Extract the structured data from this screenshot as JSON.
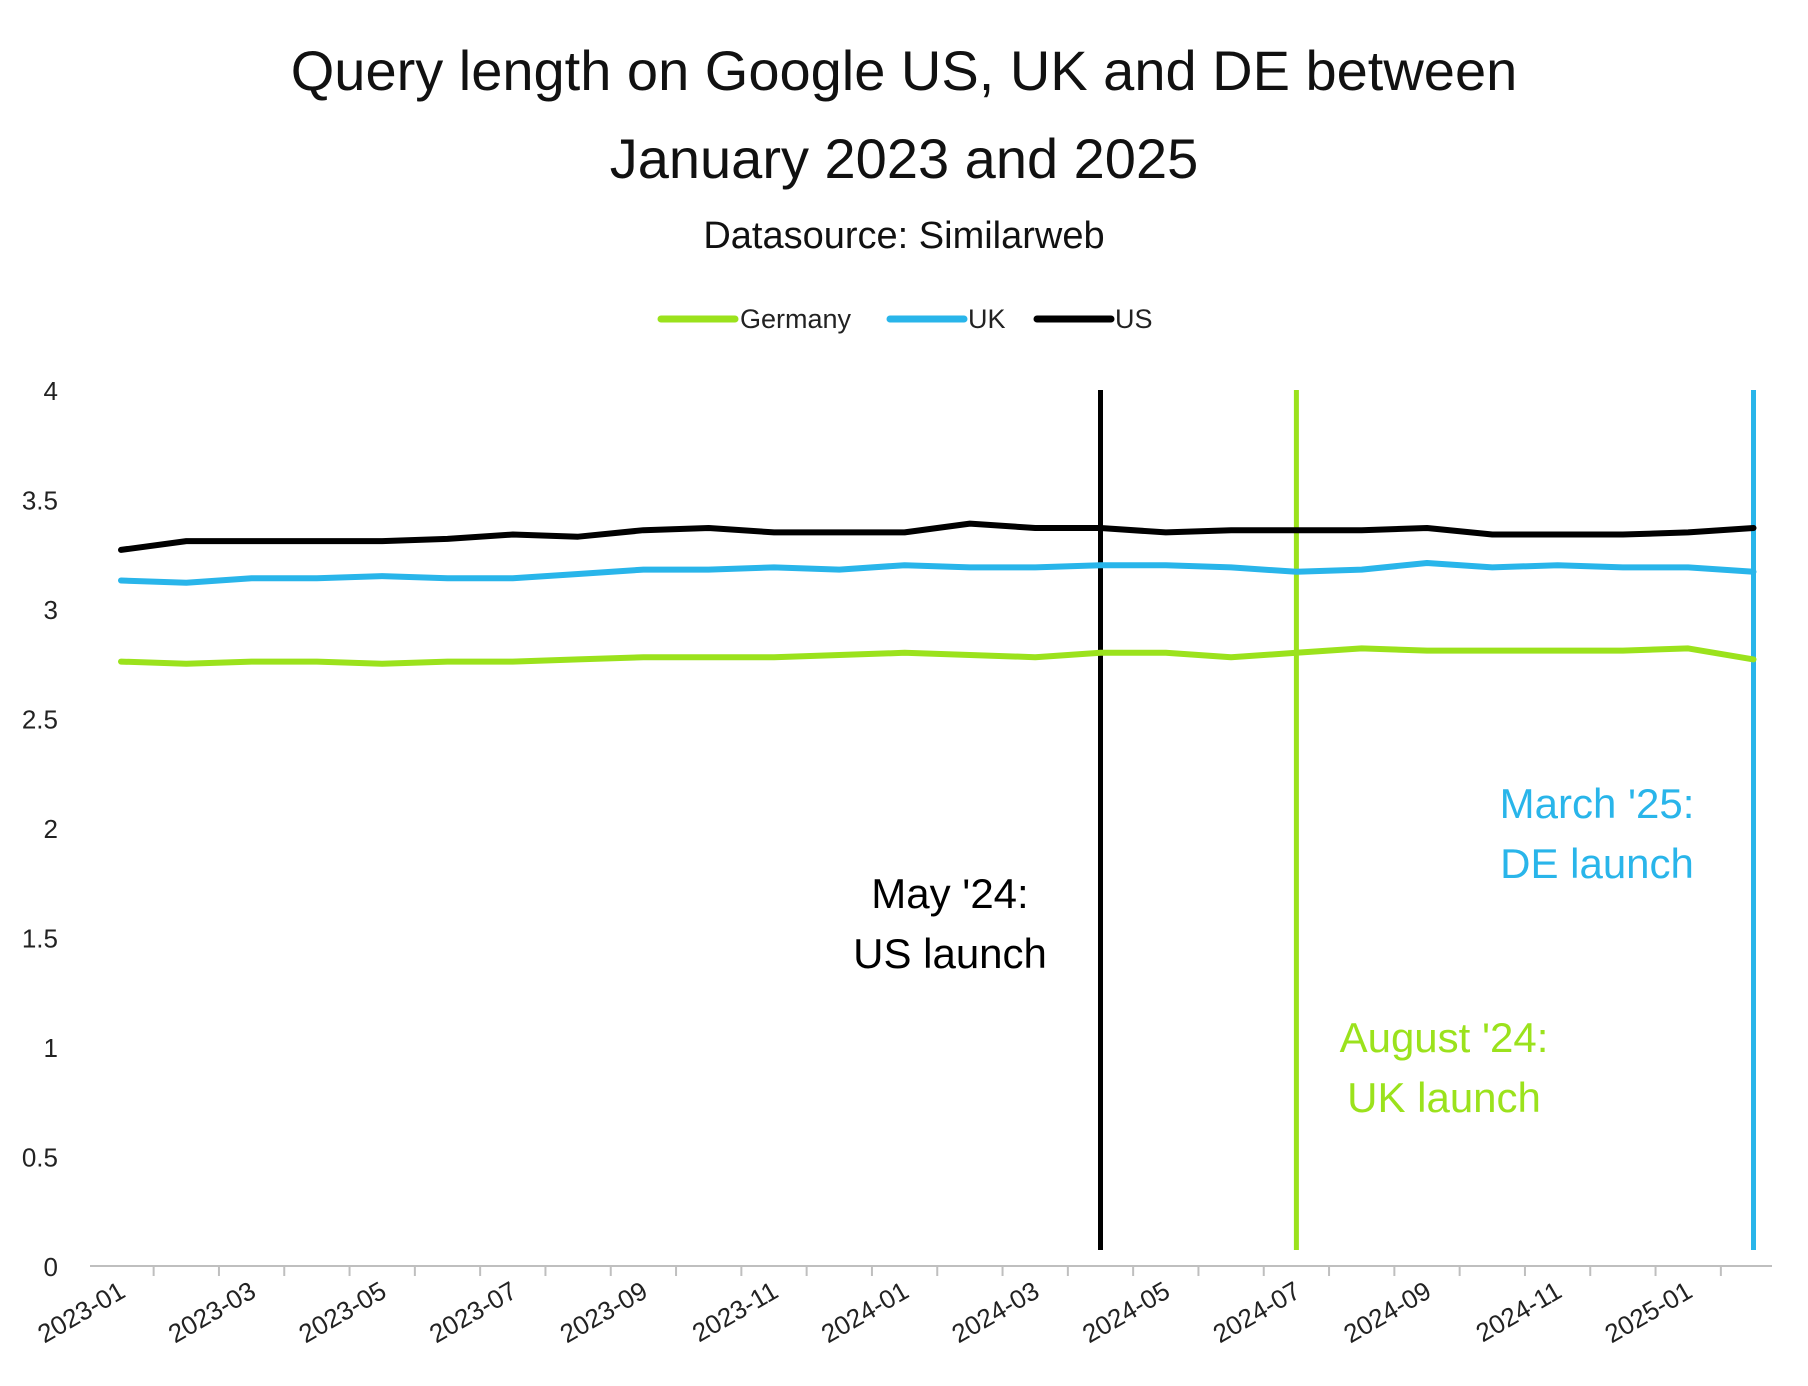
{
  "chart_data": {
    "type": "line",
    "title_lines": [
      "Query length on Google US, UK and DE between",
      "January 2023 and 2025"
    ],
    "subtitle": "Datasource: Similarweb",
    "xlabel": "",
    "ylabel": "",
    "ylim": [
      0,
      4
    ],
    "y_ticks": [
      "0",
      "0.5",
      "1",
      "1.5",
      "2",
      "2.5",
      "3",
      "3.5",
      "4"
    ],
    "x_categories": [
      "2023-01",
      "2023-02",
      "2023-03",
      "2023-04",
      "2023-05",
      "2023-06",
      "2023-07",
      "2023-08",
      "2023-09",
      "2023-10",
      "2023-11",
      "2023-12",
      "2024-01",
      "2024-02",
      "2024-03",
      "2024-04",
      "2024-05",
      "2024-06",
      "2024-07",
      "2024-08",
      "2024-09",
      "2024-10",
      "2024-11",
      "2024-12",
      "2025-01",
      "2025-02"
    ],
    "x_tick_labels": [
      "2023-01",
      "2023-03",
      "2023-05",
      "2023-07",
      "2023-09",
      "2023-11",
      "2024-01",
      "2024-03",
      "2024-05",
      "2024-07",
      "2024-09",
      "2024-11",
      "2025-01"
    ],
    "grid": false,
    "legend_position": "top-center",
    "series": [
      {
        "name": "Germany",
        "color": "#9BE21C",
        "values": [
          2.76,
          2.75,
          2.76,
          2.76,
          2.75,
          2.76,
          2.76,
          2.77,
          2.78,
          2.78,
          2.78,
          2.79,
          2.8,
          2.79,
          2.78,
          2.8,
          2.8,
          2.78,
          2.8,
          2.82,
          2.81,
          2.81,
          2.81,
          2.81,
          2.82,
          2.77
        ]
      },
      {
        "name": "UK",
        "color": "#29B5EA",
        "values": [
          3.13,
          3.12,
          3.14,
          3.14,
          3.15,
          3.14,
          3.14,
          3.16,
          3.18,
          3.18,
          3.19,
          3.18,
          3.2,
          3.19,
          3.19,
          3.2,
          3.2,
          3.19,
          3.17,
          3.18,
          3.21,
          3.19,
          3.2,
          3.19,
          3.19,
          3.17
        ]
      },
      {
        "name": "US",
        "color": "#000000",
        "values": [
          3.27,
          3.31,
          3.31,
          3.31,
          3.31,
          3.32,
          3.34,
          3.33,
          3.36,
          3.37,
          3.35,
          3.35,
          3.35,
          3.39,
          3.37,
          3.37,
          3.35,
          3.36,
          3.36,
          3.36,
          3.37,
          3.34,
          3.34,
          3.34,
          3.35,
          3.37
        ]
      }
    ],
    "annotations": [
      {
        "x": "2024-04",
        "color": "#000000",
        "lines": [
          "May '24:",
          "US launch"
        ]
      },
      {
        "x": "2024-07",
        "color": "#9BE21C",
        "lines": [
          "August '24:",
          "UK launch"
        ]
      },
      {
        "x": "2025-02",
        "color": "#29B5EA",
        "lines": [
          "March '25:",
          "DE launch"
        ]
      }
    ]
  }
}
